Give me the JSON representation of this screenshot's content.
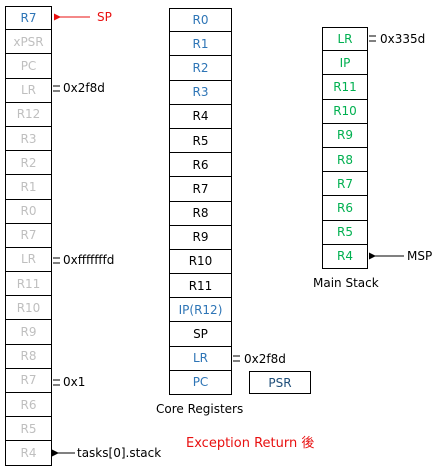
{
  "task_stack": {
    "cells": [
      {
        "label": "R7",
        "color": "blue"
      },
      {
        "label": "xPSR",
        "color": "gray"
      },
      {
        "label": "PC",
        "color": "gray"
      },
      {
        "label": "LR",
        "color": "gray"
      },
      {
        "label": "R12",
        "color": "gray"
      },
      {
        "label": "R3",
        "color": "gray"
      },
      {
        "label": "R2",
        "color": "gray"
      },
      {
        "label": "R1",
        "color": "gray"
      },
      {
        "label": "R0",
        "color": "gray"
      },
      {
        "label": "R7",
        "color": "gray"
      },
      {
        "label": "LR",
        "color": "gray"
      },
      {
        "label": "R11",
        "color": "gray"
      },
      {
        "label": "R10",
        "color": "gray"
      },
      {
        "label": "R9",
        "color": "gray"
      },
      {
        "label": "R8",
        "color": "gray"
      },
      {
        "label": "R7",
        "color": "gray"
      },
      {
        "label": "R6",
        "color": "gray"
      },
      {
        "label": "R5",
        "color": "gray"
      },
      {
        "label": "R4",
        "color": "gray"
      }
    ],
    "annotations": {
      "sp": "SP",
      "lr_value_1": "0x2f8d",
      "lr_value_2": "0xfffffffd",
      "r7_value": "0x1",
      "stack_base": "tasks[0].stack"
    }
  },
  "core_registers": {
    "cells": [
      {
        "label": "R0",
        "color": "blue"
      },
      {
        "label": "R1",
        "color": "blue"
      },
      {
        "label": "R2",
        "color": "blue"
      },
      {
        "label": "R3",
        "color": "blue"
      },
      {
        "label": "R4",
        "color": "black"
      },
      {
        "label": "R5",
        "color": "black"
      },
      {
        "label": "R6",
        "color": "black"
      },
      {
        "label": "R7",
        "color": "black"
      },
      {
        "label": "R8",
        "color": "black"
      },
      {
        "label": "R9",
        "color": "black"
      },
      {
        "label": "R10",
        "color": "black"
      },
      {
        "label": "R11",
        "color": "black"
      },
      {
        "label": "IP(R12)",
        "color": "blue"
      },
      {
        "label": "SP",
        "color": "black"
      },
      {
        "label": "LR",
        "color": "blue"
      },
      {
        "label": "PC",
        "color": "blue"
      }
    ],
    "psr_label": "PSR",
    "lr_value": "0x2f8d",
    "caption": "Core Registers"
  },
  "main_stack": {
    "cells": [
      {
        "label": "LR",
        "color": "green"
      },
      {
        "label": "IP",
        "color": "green"
      },
      {
        "label": "R11",
        "color": "green"
      },
      {
        "label": "R10",
        "color": "green"
      },
      {
        "label": "R9",
        "color": "green"
      },
      {
        "label": "R8",
        "color": "green"
      },
      {
        "label": "R7",
        "color": "green"
      },
      {
        "label": "R6",
        "color": "green"
      },
      {
        "label": "R5",
        "color": "green"
      },
      {
        "label": "R4",
        "color": "green"
      }
    ],
    "lr_value": "0x335d",
    "msp_label": "MSP",
    "caption": "Main Stack"
  },
  "footer_text": "Exception Return 後",
  "colors": {
    "gray": "#bfbfbf",
    "blue": "#2e75b6",
    "green": "#00b050",
    "red": "#e81010",
    "dark": "#1f4e79"
  }
}
